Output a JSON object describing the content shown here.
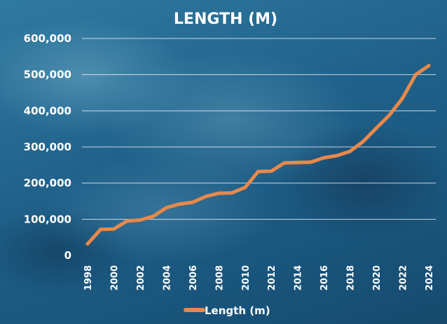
{
  "chart_data": {
    "type": "line",
    "title": "LENGTH (M)",
    "xlabel": "",
    "ylabel": "",
    "x": [
      1998,
      1999,
      2000,
      2001,
      2002,
      2003,
      2004,
      2005,
      2006,
      2007,
      2008,
      2009,
      2010,
      2011,
      2012,
      2013,
      2014,
      2015,
      2016,
      2017,
      2018,
      2019,
      2020,
      2021,
      2022,
      2023,
      2024
    ],
    "x_tick_labels": [
      "1998",
      "2000",
      "2002",
      "2004",
      "2006",
      "2008",
      "2010",
      "2012",
      "2014",
      "2016",
      "2018",
      "2020",
      "2022",
      "2024"
    ],
    "y_tick_labels": [
      "0",
      "100,000",
      "200,000",
      "300,000",
      "400,000",
      "500,000",
      "600,000"
    ],
    "ylim": [
      0,
      600000
    ],
    "grid": true,
    "legend_position": "bottom",
    "series": [
      {
        "name": "Length (m)",
        "color": "#e8894a",
        "values": [
          32000,
          72000,
          73000,
          95000,
          98000,
          108000,
          132000,
          142000,
          147000,
          163000,
          172000,
          173000,
          188000,
          232000,
          233000,
          256000,
          257000,
          258000,
          270000,
          276000,
          288000,
          315000,
          352000,
          388000,
          435000,
          500000,
          525000
        ]
      }
    ]
  }
}
